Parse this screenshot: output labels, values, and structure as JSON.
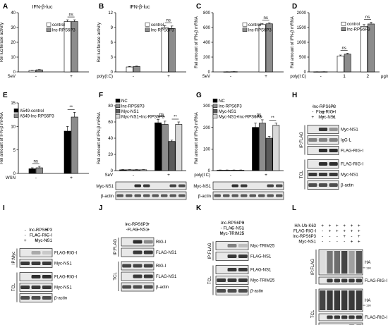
{
  "panels": {
    "A": {
      "letter": "A",
      "title": "IFN-β-luc"
    },
    "B": {
      "letter": "B",
      "title": "IFN-β-luc"
    },
    "C": {
      "letter": "C"
    },
    "D": {
      "letter": "D"
    },
    "E": {
      "letter": "E"
    },
    "F": {
      "letter": "F"
    },
    "G": {
      "letter": "G"
    },
    "H": {
      "letter": "H"
    },
    "I": {
      "letter": "I"
    },
    "J": {
      "letter": "J"
    },
    "K": {
      "letter": "K"
    },
    "L": {
      "letter": "L"
    }
  },
  "colors": {
    "control": "#ffffff",
    "lnc": "#8c8c8c",
    "nc": "#000000",
    "myc": "#5a5a5a",
    "combo": "#d9d9d9",
    "blotbg": "#e8e8e8",
    "band": "#1a1a1a"
  },
  "chart_data": [
    {
      "id": "A",
      "type": "bar",
      "ylabel": "Rel luciferase activity",
      "ylim": [
        0,
        40
      ],
      "yticks": [
        0,
        10,
        20,
        30,
        40
      ],
      "treat_label": "SeV",
      "categories": [
        "-",
        "+"
      ],
      "series": [
        {
          "name": "control",
          "values": [
            1,
            34
          ],
          "err": [
            0.2,
            1.2
          ]
        },
        {
          "name": "lnc-RPS6P3",
          "values": [
            1.4,
            34
          ],
          "err": [
            0.2,
            1.2
          ]
        }
      ],
      "sig": [
        {
          "text": "ns",
          "group": 1
        }
      ]
    },
    {
      "id": "B",
      "type": "bar",
      "ylabel": "Rel luciferase activity",
      "ylim": [
        0,
        12
      ],
      "yticks": [
        0,
        3,
        6,
        9,
        12
      ],
      "treat_label": "poly(I:C)",
      "categories": [
        "-",
        "+"
      ],
      "series": [
        {
          "name": "control",
          "values": [
            1,
            9
          ],
          "err": [
            0.1,
            0.4
          ]
        },
        {
          "name": "lnc-RPS6P3",
          "values": [
            1.1,
            8.8
          ],
          "err": [
            0.1,
            0.5
          ]
        }
      ],
      "sig": [
        {
          "text": "ns",
          "group": 1
        }
      ]
    },
    {
      "id": "C",
      "type": "bar",
      "ylabel": "Rel amount of IFN-β mRNA",
      "ylim": [
        0,
        800
      ],
      "yticks": [
        0,
        200,
        400,
        600,
        800
      ],
      "treat_label": "SeV",
      "categories": [
        "-",
        "+"
      ],
      "series": [
        {
          "name": "control",
          "values": [
            2,
            640
          ],
          "err": [
            1,
            15
          ]
        },
        {
          "name": "lnc-RPS6P3",
          "values": [
            3,
            650
          ],
          "err": [
            1,
            12
          ]
        }
      ],
      "sig": [
        {
          "text": "ns",
          "group": 1
        }
      ]
    },
    {
      "id": "D",
      "type": "bar",
      "ylabel": "Rel amount of IFN-β mRNA",
      "ylim": [
        0,
        2000
      ],
      "yticks": [
        0,
        500,
        1000,
        1500,
        2000
      ],
      "treat_label": "poly(I:C)",
      "categories": [
        "-",
        "1",
        "2"
      ],
      "unit": "μg/ml",
      "series": [
        {
          "name": "control",
          "values": [
            5,
            540,
            1540
          ],
          "err": [
            2,
            30,
            60
          ]
        },
        {
          "name": "lnc-RPS6P3",
          "values": [
            6,
            600,
            1620
          ],
          "err": [
            2,
            30,
            60
          ]
        }
      ],
      "sig": [
        {
          "text": "ns",
          "group": 1
        },
        {
          "text": "ns",
          "group": 2
        }
      ]
    },
    {
      "id": "E",
      "type": "bar",
      "ylabel": "Rel amount of IFN-β mRNA",
      "ylim": [
        0,
        15
      ],
      "yticks": [
        0,
        5,
        10,
        15
      ],
      "treat_label": "WSN",
      "categories": [
        "-",
        "+"
      ],
      "series": [
        {
          "name": "A549-control",
          "values": [
            1,
            9
          ],
          "err": [
            0.2,
            1
          ]
        },
        {
          "name": "A549-lnc-RPS6P3",
          "values": [
            1.2,
            12
          ],
          "err": [
            0.3,
            1
          ]
        }
      ],
      "sig": [
        {
          "text": "ns",
          "group": 0
        },
        {
          "text": "**",
          "group": 1
        }
      ]
    },
    {
      "id": "F",
      "type": "bar",
      "ylabel": "Rel amount of IFN-β mRNA",
      "ylim": [
        0,
        80
      ],
      "yticks": [
        0,
        20,
        40,
        60,
        80
      ],
      "treat_label": "SeV",
      "categories": [
        "-",
        "+"
      ],
      "series": [
        {
          "name": "NC",
          "values": [
            1,
            59
          ],
          "err": [
            0.3,
            4
          ]
        },
        {
          "name": "lnc-RPS6P3",
          "values": [
            1,
            57
          ],
          "err": [
            0.3,
            4
          ]
        },
        {
          "name": "Myc-NS1",
          "values": [
            1,
            36
          ],
          "err": [
            0.3,
            1.5
          ]
        },
        {
          "name": "Myc-NS1+lnc-RPS6P3",
          "values": [
            1,
            57
          ],
          "err": [
            0.3,
            3
          ]
        }
      ],
      "sig": [
        {
          "text": "ns",
          "from": 0,
          "to": 1,
          "group": 1
        },
        {
          "text": "**",
          "from": 2,
          "to": 3,
          "group": 1
        }
      ]
    },
    {
      "id": "G",
      "type": "bar",
      "ylabel": "Rel amount of IFN-β mRNA",
      "ylim": [
        0,
        300
      ],
      "yticks": [
        0,
        100,
        200,
        300
      ],
      "treat_label": "poly(I:C)",
      "categories": [
        "-",
        "+"
      ],
      "series": [
        {
          "name": "NC",
          "values": [
            2,
            200
          ],
          "err": [
            1,
            20
          ]
        },
        {
          "name": "lnc-RPS6P3",
          "values": [
            2,
            220
          ],
          "err": [
            1,
            15
          ]
        },
        {
          "name": "Myc-NS1",
          "values": [
            2,
            150
          ],
          "err": [
            1,
            8
          ]
        },
        {
          "name": "Myc-NS1+lnc-RPS6P3",
          "values": [
            2,
            210
          ],
          "err": [
            1,
            10
          ]
        }
      ],
      "sig": [
        {
          "text": "ns",
          "from": 0,
          "to": 1,
          "group": 1
        },
        {
          "text": "**",
          "from": 2,
          "to": 3,
          "group": 1
        }
      ]
    }
  ],
  "blots": {
    "F": {
      "rows": [
        "Myc-NS1",
        "β-actin"
      ]
    },
    "G": {
      "rows": [
        "Myc-NS1",
        "β-actin"
      ]
    },
    "H": {
      "cond": [
        {
          "label": "lnc-RPS6P3",
          "vals": [
            "-",
            "-",
            "+"
          ]
        },
        {
          "label": "Flag-RIG-I",
          "vals": [
            "-",
            "+",
            "+"
          ]
        },
        {
          "label": "Myc-NS1",
          "vals": [
            "+",
            "+",
            "+"
          ]
        }
      ],
      "groups": [
        {
          "name": "IP:FLAG",
          "rows": [
            "Myc-NS1",
            "IgG-L",
            "FLAG-RIG-I"
          ]
        },
        {
          "name": "TCL",
          "rows": [
            "FLAG-RIG-I",
            "Myc-NS1",
            "β-actin"
          ]
        }
      ]
    },
    "I": {
      "cond": [
        {
          "label": "lnc-RPS6P3",
          "vals": [
            "-",
            "-",
            "+"
          ]
        },
        {
          "label": "FLAG-RIG-I",
          "vals": [
            "-",
            "+",
            "+"
          ]
        },
        {
          "label": "Myc-NS1",
          "vals": [
            "+",
            "+",
            "+"
          ]
        }
      ],
      "groups": [
        {
          "name": "IP:Myc",
          "rows": [
            "FLAG-RIG-I",
            "Myc-NS1"
          ]
        },
        {
          "name": "TCL",
          "rows": [
            "FLAG-RIG-I",
            "Myc-NS1",
            "β-actin"
          ]
        }
      ]
    },
    "J": {
      "cond": [
        {
          "label": "lnc-RPS6P3",
          "vals": [
            "-",
            "-",
            "+"
          ]
        },
        {
          "label": "FLAG-NS1",
          "vals": [
            "-",
            "+",
            "+"
          ]
        }
      ],
      "groups": [
        {
          "name": "IP:FLAG",
          "rows": [
            "RIG-I",
            "FLAG-NS1"
          ]
        },
        {
          "name": "TCL",
          "rows": [
            "RIG-I",
            "FLAG-NS1",
            "β-actin"
          ]
        }
      ]
    },
    "K": {
      "cond": [
        {
          "label": "lnc-RPS6P3",
          "vals": [
            "-",
            "-",
            "+"
          ]
        },
        {
          "label": "FLAG-NS1",
          "vals": [
            "-",
            "+",
            "+"
          ]
        },
        {
          "label": "Myc-TRIM25",
          "vals": [
            "+",
            "+",
            "+"
          ]
        }
      ],
      "groups": [
        {
          "name": "IP:FLAG",
          "rows": [
            "Myc-TRIM25",
            "FLAG-NS1"
          ]
        },
        {
          "name": "TCL",
          "rows": [
            "FLAG-NS1",
            "Myc-TRIM25",
            "β-actin"
          ]
        }
      ]
    },
    "L": {
      "cond": [
        {
          "label": "HA-Ub-K63",
          "vals": [
            "+",
            "+",
            "+",
            "+",
            "+",
            "+"
          ]
        },
        {
          "label": "FLAG-RIG-I",
          "vals": [
            "-",
            "+",
            "+",
            "+",
            "+",
            "+"
          ]
        },
        {
          "label": "lnc-RPS6P3",
          "vals": [
            "-",
            "-",
            "-",
            "+",
            "-",
            "+"
          ]
        },
        {
          "label": "Myc-NS1",
          "vals": [
            "-",
            "-",
            "-",
            "-",
            "+",
            "+"
          ]
        }
      ],
      "groups": [
        {
          "name": "IP:FLAG",
          "rows": [
            "HA",
            "FLAG-RIG-I"
          ]
        },
        {
          "name": "TCL",
          "rows": [
            "HA",
            "FLAG-RIG-I",
            "Myc-NS1",
            "β-actin"
          ]
        }
      ],
      "marker": "130"
    }
  }
}
